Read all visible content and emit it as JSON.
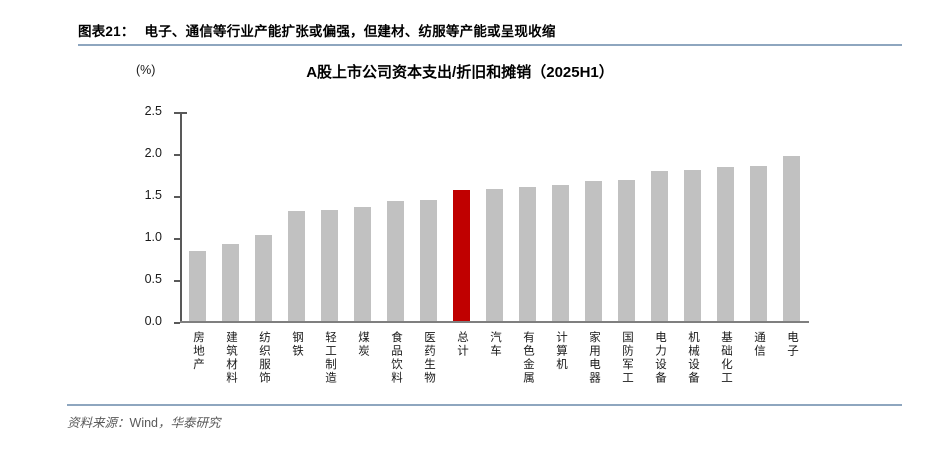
{
  "header": {
    "figure_label": "图表21：",
    "title": "电子、通信等行业产能扩张或偏强，但建材、纺服等产能或呈现收缩"
  },
  "chart_data": {
    "type": "bar",
    "title": "A股上市公司资本支出/折旧和摊销（2025H1）",
    "unit_label": "(%)",
    "categories": [
      "房地产",
      "建筑材料",
      "纺织服饰",
      "钢铁",
      "轻工制造",
      "煤炭",
      "食品饮料",
      "医药生物",
      "总计",
      "汽车",
      "有色金属",
      "计算机",
      "家用电器",
      "国防军工",
      "电力设备",
      "机械设备",
      "基础化工",
      "通信",
      "电子"
    ],
    "values": [
      0.84,
      0.92,
      1.03,
      1.32,
      1.33,
      1.36,
      1.44,
      1.45,
      1.57,
      1.58,
      1.6,
      1.63,
      1.68,
      1.69,
      1.8,
      1.81,
      1.84,
      1.86,
      1.98
    ],
    "highlight_category": "总计",
    "highlight_index": 8,
    "ylim": [
      0,
      2.5
    ],
    "y_ticks": [
      "2.5",
      "2.0",
      "1.5",
      "1.0",
      "0.5",
      "0.0"
    ],
    "grid": false,
    "legend": "none",
    "colors": {
      "bar": "#c1c1c1",
      "highlight": "#c00000",
      "axis": "#595959",
      "baseline": "#7f7f7f"
    }
  },
  "footer": {
    "prefix": "资料来源：",
    "source": "Wind",
    "suffix": "，华泰研究"
  },
  "colors": {
    "divider": "#8ea6bf"
  }
}
